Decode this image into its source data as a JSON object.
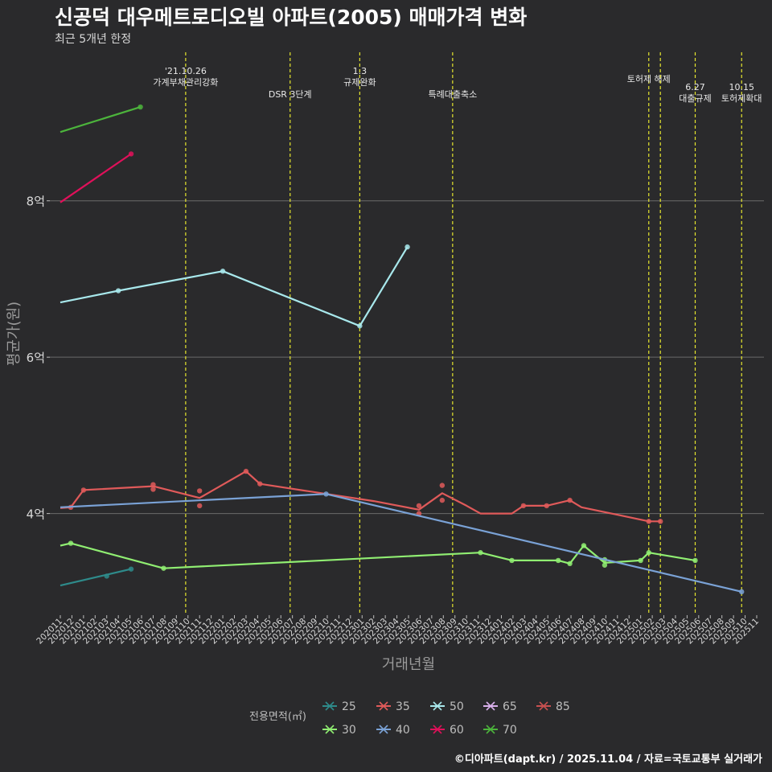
{
  "title": "신공덕 대우메트로디오빌 아파트(2005) 매매가격 변화",
  "subtitle": "최근 5개년 한정",
  "caption": "©디아파트(dapt.kr) / 2025.11.04 / 자료=국토교통부 실거래가",
  "colors": {
    "background": "#2a2a2c",
    "grid": "#6a6a6a",
    "policy_line": "#e6e62e",
    "axis_text": "#bdbdbd"
  },
  "chart_data": {
    "type": "line",
    "title": "신공덕 대우메트로디오빌 아파트(2005) 매매가격 변화",
    "subtitle": "최근 5개년 한정",
    "xlabel": "거래년월",
    "ylabel": "평균가(원)",
    "ylim": [
      2.7,
      9.9
    ],
    "yticks": [
      4,
      6,
      8
    ],
    "ytick_labels": [
      "4억",
      "6억",
      "8억"
    ],
    "x_categories": [
      "202011",
      "202012",
      "202101",
      "202102",
      "202103",
      "202104",
      "202105",
      "202106",
      "202107",
      "202108",
      "202109",
      "202110",
      "202111",
      "202112",
      "202201",
      "202202",
      "202203",
      "202204",
      "202205",
      "202206",
      "202207",
      "202208",
      "202209",
      "202210",
      "202211",
      "202212",
      "202301",
      "202302",
      "202303",
      "202304",
      "202305",
      "202306",
      "202307",
      "202308",
      "202309",
      "202310",
      "202311",
      "202312",
      "202401",
      "202402",
      "202403",
      "202404",
      "202405",
      "202406",
      "202407",
      "202408",
      "202409",
      "202410",
      "202411",
      "202412",
      "202501",
      "202502",
      "202503",
      "202504",
      "202505",
      "202506",
      "202507",
      "202508",
      "202509",
      "202510",
      "202511"
    ],
    "policy_lines": [
      {
        "x": 10.8,
        "label": "'21.10.26\n가계부채관리강화",
        "label_row": 0
      },
      {
        "x": 19.8,
        "label": "DSR 3단계",
        "label_row": 2
      },
      {
        "x": 25.8,
        "label": "1.3\n규제완화",
        "label_row": 0
      },
      {
        "x": 33.8,
        "label": "특례대출축소",
        "label_row": 2
      },
      {
        "x": 50.7,
        "label": "토허제 해제",
        "label_row": 1
      },
      {
        "x": 51.7,
        "label": "",
        "label_row": 1
      },
      {
        "x": 54.7,
        "label": "6.27\n대출규제",
        "label_row": 1.5
      },
      {
        "x": 58.7,
        "label": "10.15\n토허제확대",
        "label_row": 1.5
      }
    ],
    "series": [
      {
        "name": "25",
        "color": "#2e8b8b",
        "trend": [
          [
            0,
            3.08
          ],
          [
            6.1,
            3.29
          ]
        ],
        "points": [
          [
            4,
            3.2
          ],
          [
            6.1,
            3.29
          ]
        ]
      },
      {
        "name": "30",
        "color": "#90ee72",
        "trend": [
          [
            0,
            3.59
          ],
          [
            0.9,
            3.62
          ],
          [
            8.9,
            3.3
          ],
          [
            36.2,
            3.5
          ],
          [
            38.9,
            3.4
          ],
          [
            42.9,
            3.4
          ],
          [
            43.9,
            3.36
          ],
          [
            45.1,
            3.59
          ],
          [
            46.9,
            3.37
          ],
          [
            50,
            3.4
          ],
          [
            50.7,
            3.5
          ],
          [
            54.7,
            3.4
          ]
        ],
        "points": [
          [
            0.9,
            3.62
          ],
          [
            8.9,
            3.3
          ],
          [
            36.2,
            3.5
          ],
          [
            38.9,
            3.4
          ],
          [
            42.9,
            3.4
          ],
          [
            43.9,
            3.36
          ],
          [
            45.1,
            3.59
          ],
          [
            46.9,
            3.41
          ],
          [
            46.9,
            3.34
          ],
          [
            50,
            3.4
          ],
          [
            50.7,
            3.5
          ],
          [
            54.7,
            3.4
          ]
        ]
      },
      {
        "name": "35",
        "color": "#e05a5a",
        "trend": [
          [
            0,
            4.07
          ],
          [
            0.9,
            4.08
          ],
          [
            2,
            4.3
          ],
          [
            8,
            4.35
          ],
          [
            12,
            4.2
          ],
          [
            16,
            4.54
          ],
          [
            17.2,
            4.38
          ],
          [
            27,
            4.16
          ],
          [
            30.9,
            4.05
          ],
          [
            32.9,
            4.26
          ],
          [
            35,
            4.1
          ],
          [
            36.2,
            4.0
          ],
          [
            38.9,
            4.0
          ],
          [
            39.9,
            4.1
          ],
          [
            41.9,
            4.1
          ],
          [
            43.9,
            4.17
          ],
          [
            44.9,
            4.08
          ],
          [
            50.7,
            3.9
          ],
          [
            51.7,
            3.9
          ]
        ],
        "points": [
          [
            0.9,
            4.08
          ],
          [
            2,
            4.3
          ],
          [
            8,
            4.37
          ],
          [
            8,
            4.31
          ],
          [
            12,
            4.29
          ],
          [
            12,
            4.1
          ],
          [
            16,
            4.54
          ],
          [
            17.2,
            4.38
          ],
          [
            30.9,
            4.1
          ],
          [
            30.9,
            4.0
          ],
          [
            32.9,
            4.36
          ],
          [
            32.9,
            4.17
          ],
          [
            39.9,
            4.1
          ],
          [
            41.9,
            4.1
          ],
          [
            43.9,
            4.17
          ],
          [
            50.7,
            3.9
          ],
          [
            51.7,
            3.9
          ]
        ]
      },
      {
        "name": "40",
        "color": "#7aa2d6",
        "trend": [
          [
            0,
            4.08
          ],
          [
            22.9,
            4.25
          ],
          [
            58.7,
            3.0
          ]
        ],
        "points": [
          [
            22.9,
            4.25
          ],
          [
            58.7,
            3.0
          ]
        ]
      },
      {
        "name": "50",
        "color": "#a8e8ec",
        "trend": [
          [
            0,
            6.7
          ],
          [
            5,
            6.85
          ],
          [
            14,
            7.1
          ],
          [
            25.8,
            6.4
          ],
          [
            29.9,
            7.41
          ]
        ],
        "points": [
          [
            5,
            6.85
          ],
          [
            14,
            7.1
          ],
          [
            25.8,
            6.4
          ],
          [
            29.9,
            7.41
          ]
        ]
      },
      {
        "name": "60",
        "color": "#e0105a",
        "trend": [
          [
            0,
            7.98
          ],
          [
            6.1,
            8.6
          ]
        ],
        "points": [
          [
            6.1,
            8.6
          ]
        ]
      },
      {
        "name": "65",
        "color": "#d9b0ec",
        "trend": [],
        "points": []
      },
      {
        "name": "70",
        "color": "#4cb43c",
        "trend": [
          [
            0,
            8.88
          ],
          [
            6.9,
            9.2
          ]
        ],
        "points": [
          [
            6.9,
            9.2
          ]
        ]
      },
      {
        "name": "85",
        "color": "#c85050",
        "trend": [],
        "points": []
      }
    ],
    "legend": {
      "title": "전용면적(㎡)",
      "position": "bottom",
      "rows": [
        [
          "25",
          "35",
          "50",
          "65",
          "85"
        ],
        [
          "30",
          "40",
          "60",
          "70"
        ]
      ]
    }
  }
}
